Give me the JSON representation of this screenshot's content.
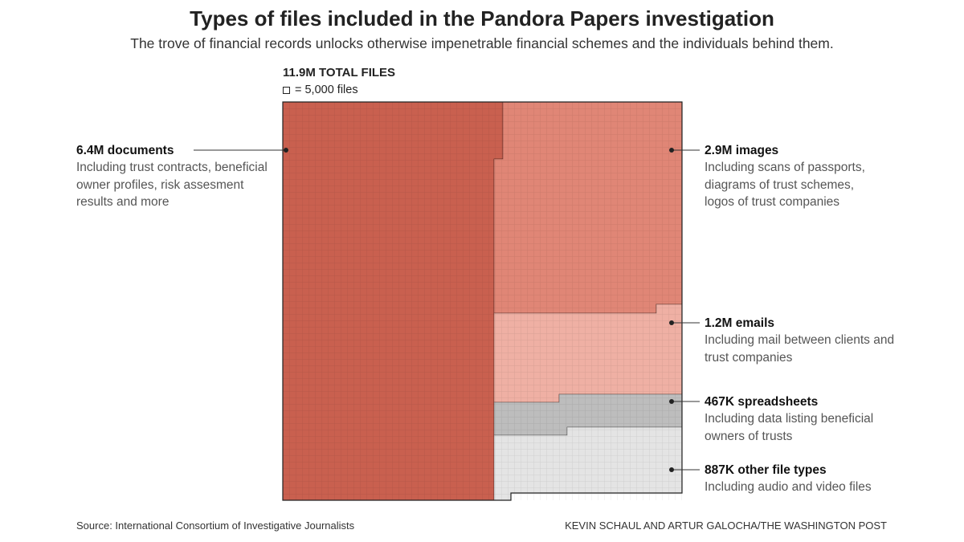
{
  "header": {
    "title": "Types of files included in the Pandora Papers investigation",
    "subtitle": "The trove of financial records unlocks otherwise impenetrable financial schemes and the individuals behind them."
  },
  "total_label": "11.9M TOTAL FILES",
  "unit_label": "= 5,000 files",
  "footer": {
    "source": "Source: International Consortium of Investigative Journalists",
    "credit": "KEVIN SCHAUL AND ARTUR GALOCHA/THE WASHINGTON POST"
  },
  "chart_data": {
    "type": "waffle",
    "unit_value": 5000,
    "total": "11.9M",
    "series": [
      {
        "name": "6.4M documents",
        "value": 6400000,
        "description": "Including trust contracts, beneficial owner profiles, risk assesment results and more",
        "color": "#c9604f"
      },
      {
        "name": "2.9M images",
        "value": 2900000,
        "description": "Including scans of passports, diagrams of trust schemes, logos of trust companies",
        "color": "#e08676"
      },
      {
        "name": "1.2M emails",
        "value": 1200000,
        "description": "Including mail between clients and trust companies",
        "color": "#efb0a4"
      },
      {
        "name": "467K spreadsheets",
        "value": 467000,
        "description": "Including data listing beneficial owners of trusts",
        "color": "#bdbdbd"
      },
      {
        "name": "887K other file types",
        "value": 887000,
        "description": "Including audio and video files",
        "color": "#e4e4e4"
      }
    ]
  }
}
